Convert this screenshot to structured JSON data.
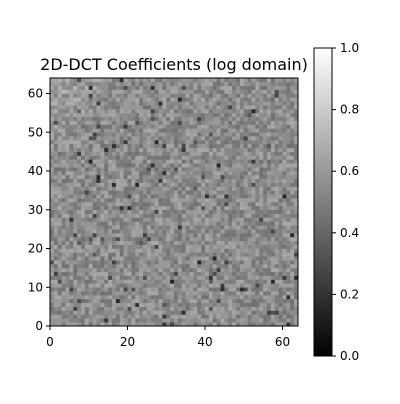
{
  "chart_data": {
    "type": "heatmap",
    "title": "2D-DCT Coefficients (log domain)",
    "xlabel": "",
    "ylabel": "",
    "x_range": [
      0,
      64
    ],
    "y_range": [
      0,
      64
    ],
    "x_ticks": [
      "0",
      "20",
      "40",
      "60"
    ],
    "y_ticks": [
      "0",
      "10",
      "20",
      "30",
      "40",
      "50",
      "60"
    ],
    "grid_rows": 64,
    "grid_cols": 64,
    "value_range": [
      0.0,
      1.0
    ],
    "colormap": "gray",
    "typical_value": 0.55,
    "colorbar": {
      "range": [
        0.0,
        1.0
      ],
      "ticks": [
        "0.0",
        "0.2",
        "0.4",
        "0.6",
        "0.8",
        "1.0"
      ],
      "colors": [
        "#000000",
        "#ffffff"
      ]
    },
    "grid": false
  }
}
